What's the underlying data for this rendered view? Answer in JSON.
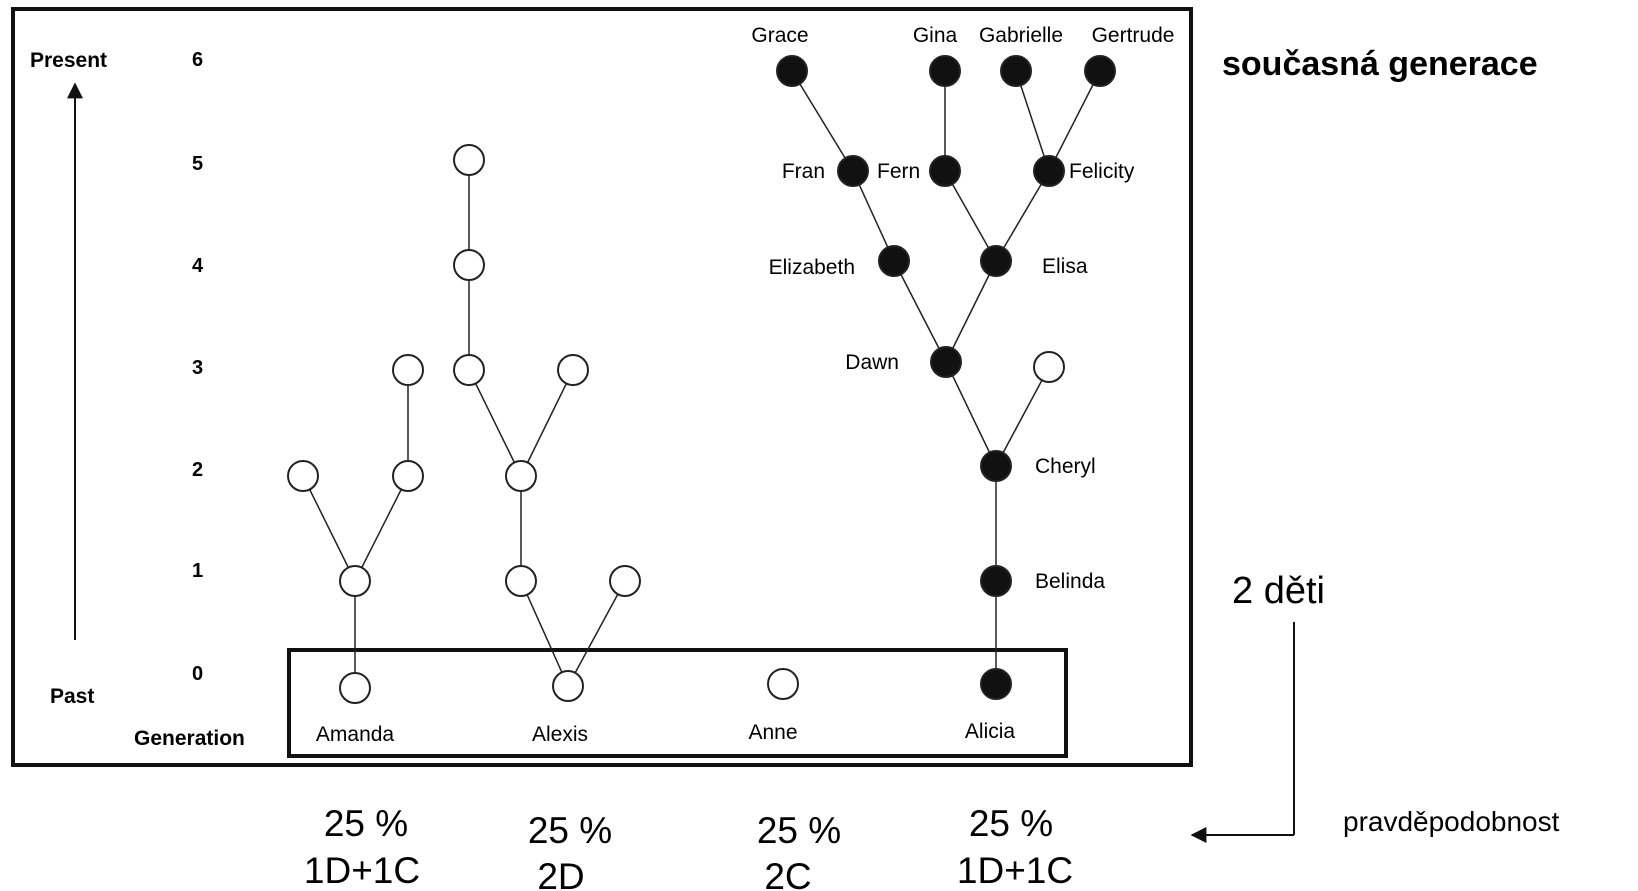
{
  "axis": {
    "present_label": "Present",
    "past_label": "Past",
    "generation_label": "Generation",
    "levels": [
      "0",
      "1",
      "2",
      "3",
      "4",
      "5",
      "6"
    ]
  },
  "founders": [
    {
      "id": "amanda",
      "name": "Amanda",
      "generation": 0,
      "filled": false
    },
    {
      "id": "alexis",
      "name": "Alexis",
      "generation": 0,
      "filled": false
    },
    {
      "id": "anne",
      "name": "Anne",
      "generation": 0,
      "filled": false
    },
    {
      "id": "alicia",
      "name": "Alicia",
      "generation": 0,
      "filled": true
    }
  ],
  "named_descendants": [
    {
      "id": "belinda",
      "name": "Belinda",
      "generation": 1
    },
    {
      "id": "cheryl",
      "name": "Cheryl",
      "generation": 2
    },
    {
      "id": "dawn",
      "name": "Dawn",
      "generation": 3
    },
    {
      "id": "elizabeth",
      "name": "Elizabeth",
      "generation": 4
    },
    {
      "id": "elisa",
      "name": "Elisa",
      "generation": 4
    },
    {
      "id": "fran",
      "name": "Fran",
      "generation": 5
    },
    {
      "id": "fern",
      "name": "Fern",
      "generation": 5
    },
    {
      "id": "felicity",
      "name": "Felicity",
      "generation": 5
    },
    {
      "id": "grace",
      "name": "Grace",
      "generation": 6
    },
    {
      "id": "gina",
      "name": "Gina",
      "generation": 6
    },
    {
      "id": "gabrielle",
      "name": "Gabrielle",
      "generation": 6
    },
    {
      "id": "gertrude",
      "name": "Gertrude",
      "generation": 6
    }
  ],
  "annotations": {
    "current_generation": "současná generace",
    "two_children": "2 děti",
    "probability": "pravděpodobnost"
  },
  "outcomes": [
    {
      "percent": "25 %",
      "combo": "1D+1C"
    },
    {
      "percent": "25 %",
      "combo": "2D"
    },
    {
      "percent": "25 %",
      "combo": "2C"
    },
    {
      "percent": "25 %",
      "combo": "1D+1C"
    }
  ]
}
